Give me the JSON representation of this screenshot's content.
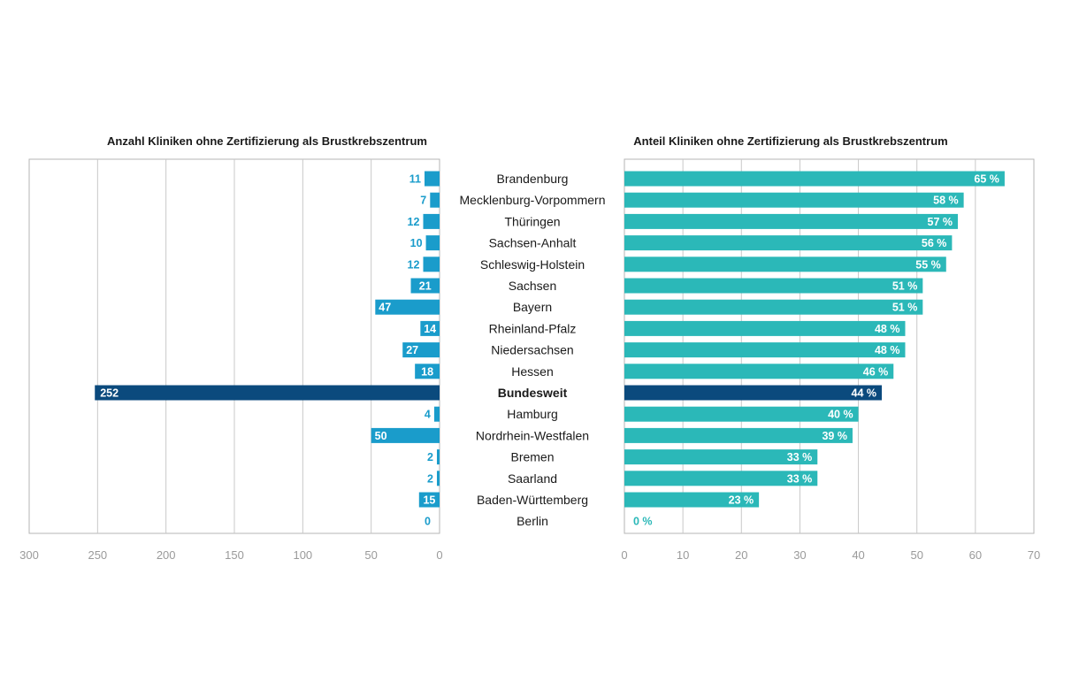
{
  "chart_data": [
    {
      "type": "bar",
      "orientation": "horizontal",
      "direction": "right-to-left",
      "title": "Anzahl Kliniken ohne Zertifizierung als Brustkrebszentrum",
      "categories": [
        "Brandenburg",
        "Mecklenburg-Vorpommern",
        "Thüringen",
        "Sachsen-Anhalt",
        "Schleswig-Holstein",
        "Sachsen",
        "Bayern",
        "Rheinland-Pfalz",
        "Niedersachsen",
        "Hessen",
        "Bundesweit",
        "Hamburg",
        "Nordrhein-Westfalen",
        "Bremen",
        "Saarland",
        "Baden-Württemberg",
        "Berlin"
      ],
      "values": [
        11,
        7,
        12,
        10,
        12,
        21,
        47,
        14,
        27,
        18,
        252,
        4,
        50,
        2,
        2,
        15,
        0
      ],
      "value_labels": [
        "11",
        "7",
        "12",
        "10",
        "12",
        "21",
        "47",
        "14",
        "27",
        "18",
        "252",
        "4",
        "50",
        "2",
        "2",
        "15",
        "0"
      ],
      "highlight": "Bundesweit",
      "xlim": [
        0,
        300
      ],
      "ticks": [
        "300",
        "250",
        "200",
        "150",
        "100",
        "50",
        "0"
      ],
      "tick_values": [
        300,
        250,
        200,
        150,
        100,
        50,
        0
      ],
      "grid": true
    },
    {
      "type": "bar",
      "orientation": "horizontal",
      "title": "Anteil Kliniken ohne Zertifizierung als Brustkrebszentrum",
      "categories": [
        "Brandenburg",
        "Mecklenburg-Vorpommern",
        "Thüringen",
        "Sachsen-Anhalt",
        "Schleswig-Holstein",
        "Sachsen",
        "Bayern",
        "Rheinland-Pfalz",
        "Niedersachsen",
        "Hessen",
        "Bundesweit",
        "Hamburg",
        "Nordrhein-Westfalen",
        "Bremen",
        "Saarland",
        "Baden-Württemberg",
        "Berlin"
      ],
      "values": [
        65,
        58,
        57,
        56,
        55,
        51,
        51,
        48,
        48,
        46,
        44,
        40,
        39,
        33,
        33,
        23,
        0
      ],
      "value_labels": [
        "65 %",
        "58 %",
        "57 %",
        "56 %",
        "55 %",
        "51 %",
        "51 %",
        "48 %",
        "48 %",
        "46 %",
        "44 %",
        "40 %",
        "39 %",
        "33 %",
        "33 %",
        "23 %",
        "0 %"
      ],
      "unit": "%",
      "highlight": "Bundesweit",
      "xlim": [
        0,
        70
      ],
      "ticks": [
        "0",
        "10",
        "20",
        "30",
        "40",
        "50",
        "60",
        "70"
      ],
      "tick_values": [
        0,
        10,
        20,
        30,
        40,
        50,
        60,
        70
      ],
      "grid": true
    }
  ],
  "colors": {
    "left_bar": "#1a9ccb",
    "right_bar": "#2bb8b8",
    "highlight_bar": "#0b4a7d",
    "grid": "#c8c8c8",
    "frame": "#b5b5b5",
    "tick_text": "#9a9a9a",
    "zero_label_left": "#1a9ccb",
    "zero_label_right": "#2bb8b8"
  }
}
